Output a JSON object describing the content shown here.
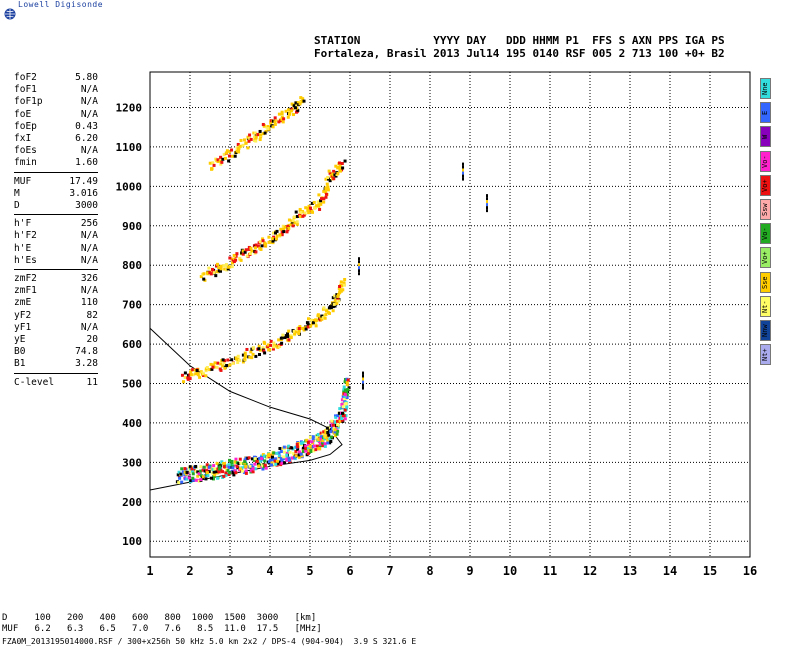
{
  "brand": {
    "name": "Lowell Digisonde"
  },
  "header": {
    "line1": "STATION           YYYY DAY   DDD HHMM P1  FFS S AXN PPS IGA PS",
    "line2": "Fortaleza, Brasil 2013 Jul14 195 0140 RSF 005 2 713 100 +0+ B2"
  },
  "params_groups": [
    [
      [
        "foF2",
        "5.80"
      ],
      [
        "foF1",
        "N/A"
      ],
      [
        "foF1p",
        "N/A"
      ],
      [
        "foE",
        "N/A"
      ],
      [
        "foEp",
        "0.43"
      ],
      [
        "fxI",
        "6.20"
      ],
      [
        "foEs",
        "N/A"
      ],
      [
        "fmin",
        "1.60"
      ]
    ],
    [
      [
        "MUF",
        "17.49"
      ],
      [
        "M",
        "3.016"
      ],
      [
        "D",
        "3000"
      ]
    ],
    [
      [
        "h'F",
        "256"
      ],
      [
        "h'F2",
        "N/A"
      ],
      [
        "h'E",
        "N/A"
      ],
      [
        "h'Es",
        "N/A"
      ]
    ],
    [
      [
        "zmF2",
        "326"
      ],
      [
        "zmF1",
        "N/A"
      ],
      [
        "zmE",
        "110"
      ],
      [
        "yF2",
        "82"
      ],
      [
        "yF1",
        "N/A"
      ],
      [
        "yE",
        "20"
      ],
      [
        "B0",
        "74.8"
      ],
      [
        "B1",
        "3.28"
      ]
    ],
    [
      [
        "C-level",
        "11"
      ]
    ]
  ],
  "legend": [
    {
      "label": "Nne",
      "color": "#33dddd"
    },
    {
      "label": "E",
      "color": "#3366ff"
    },
    {
      "label": "W",
      "color": "#8800bb"
    },
    {
      "label": "Vo-",
      "color": "#ff22cc"
    },
    {
      "label": "Vo+",
      "color": "#ee1111"
    },
    {
      "label": "Ssw",
      "color": "#ffaaaa"
    },
    {
      "label": "Vo-",
      "color": "#22aa22"
    },
    {
      "label": "Vo+",
      "color": "#99ee66"
    },
    {
      "label": "Sse",
      "color": "#ffcc00"
    },
    {
      "label": "Nt-",
      "color": "#ffff66"
    },
    {
      "label": "Nnw",
      "color": "#114499"
    },
    {
      "label": "Nt+",
      "color": "#aaaaee"
    }
  ],
  "footer": {
    "d_row": "D     100   200   400   600   800  1000  1500  3000   [km]",
    "muf_row": "MUF   6.2   6.3   6.5   7.0   7.6   8.5  11.0  17.5   [MHz]",
    "file_row": "FZA0M_2013195014000.RSF / 300+x256h 50 kHz 5.0 km 2x2 / DPS-4 (904-904)  3.9 S 321.6 E"
  },
  "chart_data": {
    "type": "scatter",
    "x_ticks": [
      "1",
      "2",
      "3",
      "4",
      "5",
      "6",
      "7",
      "8",
      "9",
      "10",
      "11",
      "12",
      "13",
      "14",
      "15",
      "16"
    ],
    "y_ticks": [
      "100",
      "200",
      "300",
      "400",
      "500",
      "600",
      "700",
      "800",
      "900",
      "1000",
      "1100",
      "1200"
    ],
    "xlim": [
      1,
      16
    ],
    "ylim": [
      60,
      1290
    ],
    "grid": true,
    "traces": [
      {
        "name": "O-trace first hop",
        "color_mix": "multi",
        "points": [
          [
            1.7,
            270
          ],
          [
            2.2,
            275
          ],
          [
            2.8,
            285
          ],
          [
            3.3,
            295
          ],
          [
            3.8,
            305
          ],
          [
            4.3,
            320
          ],
          [
            4.8,
            340
          ],
          [
            5.2,
            355
          ],
          [
            5.5,
            380
          ],
          [
            5.8,
            430
          ],
          [
            5.9,
            500
          ]
        ]
      },
      {
        "name": "second hop",
        "color_mix": "yellow",
        "points": [
          [
            1.8,
            520
          ],
          [
            2.4,
            535
          ],
          [
            3.0,
            560
          ],
          [
            3.6,
            585
          ],
          [
            4.2,
            610
          ],
          [
            4.7,
            640
          ],
          [
            5.2,
            670
          ],
          [
            5.6,
            710
          ],
          [
            5.8,
            760
          ]
        ]
      },
      {
        "name": "third hop",
        "color_mix": "yellow",
        "points": [
          [
            2.3,
            775
          ],
          [
            2.8,
            800
          ],
          [
            3.3,
            830
          ],
          [
            3.8,
            860
          ],
          [
            4.3,
            890
          ],
          [
            4.7,
            930
          ],
          [
            5.2,
            960
          ],
          [
            5.5,
            1030
          ],
          [
            5.8,
            1060
          ]
        ]
      },
      {
        "name": "fourth hop",
        "color_mix": "yellow",
        "points": [
          [
            2.5,
            1055
          ],
          [
            3.1,
            1095
          ],
          [
            3.6,
            1130
          ],
          [
            4.0,
            1160
          ],
          [
            4.5,
            1195
          ],
          [
            4.8,
            1220
          ]
        ]
      },
      {
        "name": "sporadic",
        "color_mix": "black",
        "points": [
          [
            6.3,
            510
          ],
          [
            8.8,
            1040
          ],
          [
            9.4,
            960
          ],
          [
            6.2,
            800
          ]
        ]
      }
    ],
    "profile_curve": [
      [
        1.0,
        230
      ],
      [
        2.0,
        250
      ],
      [
        3.0,
        270
      ],
      [
        4.0,
        290
      ],
      [
        5.0,
        305
      ],
      [
        5.5,
        320
      ],
      [
        5.8,
        345
      ],
      [
        5.5,
        385
      ],
      [
        5.0,
        410
      ],
      [
        4.0,
        440
      ],
      [
        3.0,
        480
      ],
      [
        2.0,
        545
      ],
      [
        1.0,
        640
      ]
    ]
  }
}
